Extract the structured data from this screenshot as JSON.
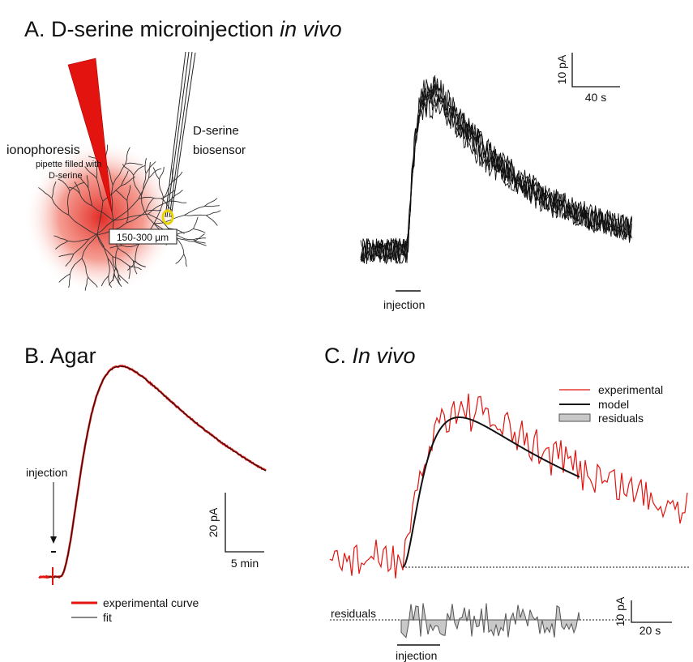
{
  "panel_a": {
    "label": "A. D-serine microinjection",
    "label_italic": "in vivo",
    "schematic": {
      "ionophoresis": "ionophoresis",
      "pipette": "pipette filled with",
      "pipette_drug": "D-serine",
      "biosensor": [
        "D-serine",
        "biosensor"
      ],
      "distance": "150-300 µm"
    },
    "scale_bar": {
      "y": "10 pA",
      "x": "40 s"
    },
    "injection": "injection"
  },
  "panel_b": {
    "label": "B. Agar",
    "injection": "injection",
    "scale_bar": {
      "y": "20 pA",
      "x": "5 min"
    },
    "legend": [
      "experimental curve",
      "fit"
    ]
  },
  "panel_c": {
    "label": "C.",
    "label_italic": "In vivo",
    "legend": [
      "experimental",
      "model",
      "residuals"
    ],
    "residuals": "residuals",
    "scale_bar": {
      "y": "10 pA",
      "x": "20 s"
    },
    "injection": "injection"
  }
}
